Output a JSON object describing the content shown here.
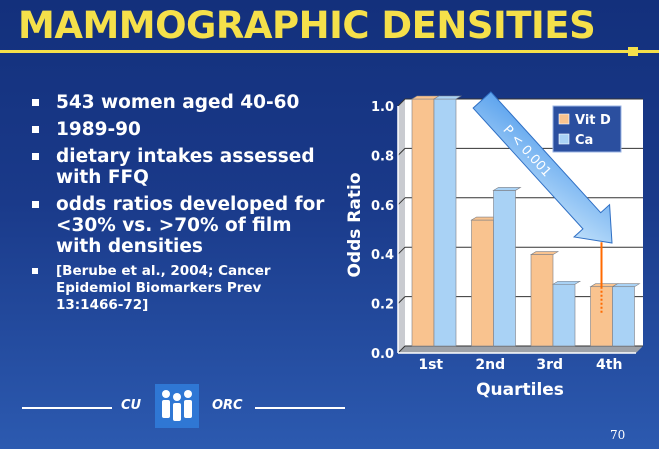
{
  "slide": {
    "title": "MAMMOGRAPHIC DENSITIES",
    "bullets": [
      "543 women aged 40-60",
      "1989-90",
      "dietary intakes assessed with FFQ",
      "odds ratios developed for <30% vs. >70% of film with densities"
    ],
    "citation": "[Berube et al., 2004; Cancer Epidemiol Biomarkers Prev 13:1466-72]",
    "footer_left": "CU",
    "footer_right": "ORC",
    "page_number": "70"
  },
  "chart_data": {
    "type": "bar",
    "categories": [
      "1st",
      "2nd",
      "3rd",
      "4th"
    ],
    "series": [
      {
        "name": "Vit D",
        "values": [
          1.0,
          0.51,
          0.37,
          0.24
        ],
        "color": "#f9c38f"
      },
      {
        "name": "Ca",
        "values": [
          1.0,
          0.63,
          0.25,
          0.24
        ],
        "color": "#a9d2f5"
      }
    ],
    "ylabel": "Odds Ratio",
    "xlabel": "Quartiles",
    "ylim": [
      0,
      1.0
    ],
    "yticks": [
      "0.0",
      "0.2",
      "0.4",
      "0.6",
      "0.8",
      "1.0"
    ],
    "grid": true,
    "legend": "top-right",
    "annotation": "P < 0.001",
    "ci_low": 0.13,
    "ci_high": 0.42
  },
  "colors": {
    "title": "#f5e04a",
    "background": "#1a3a8a",
    "arrow": "#a9d2f5",
    "ci": "#ff6a00"
  }
}
